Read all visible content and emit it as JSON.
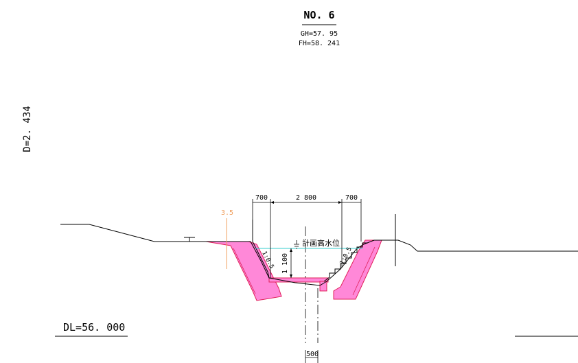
{
  "header": {
    "station": "NO. 6",
    "gh": "GH=57. 95",
    "fh": "FH=58. 241"
  },
  "depth_label": "D=2. 434",
  "datum_label": "DL=56. 000",
  "dimensions": {
    "left_berm": "700",
    "channel_width": "2 800",
    "right_berm": "700",
    "depth": "1 100",
    "base_width": "500"
  },
  "annotations": {
    "design_water_level": "計画高水位",
    "slope_left": "1:0.5",
    "slope_right": "1:0.5",
    "slope_angle": "3.5"
  },
  "colors": {
    "block_fill": "#ff88d8",
    "block_stroke": "#e0205a",
    "water_line": "#33cccc",
    "angle_mark": "#f0a060"
  }
}
